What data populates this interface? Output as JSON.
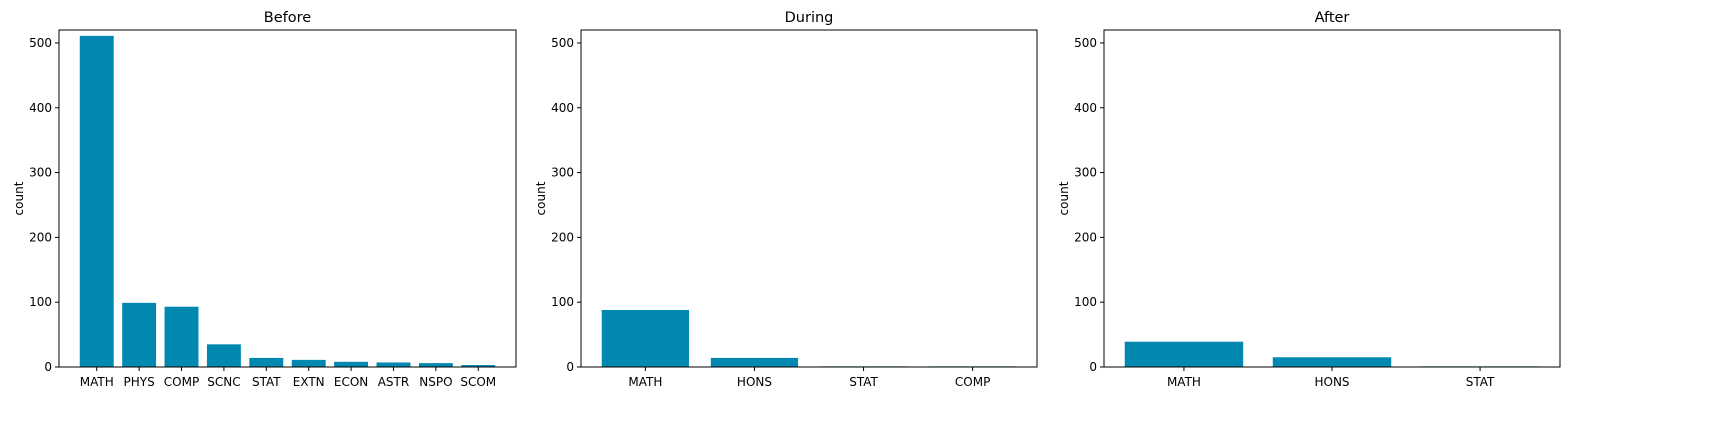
{
  "bar_color": "#0088b0",
  "chart_data": [
    {
      "type": "bar",
      "title": "Before",
      "xlabel": "",
      "ylabel": "count",
      "ylim": [
        0,
        520
      ],
      "yticks": [
        0,
        100,
        200,
        300,
        400,
        500
      ],
      "categories": [
        "MATH",
        "PHYS",
        "COMP",
        "SCNC",
        "STAT",
        "EXTN",
        "ECON",
        "ASTR",
        "NSPO",
        "SCOM"
      ],
      "values": [
        511,
        99,
        93,
        35,
        14,
        11,
        8,
        7,
        6,
        3
      ]
    },
    {
      "type": "bar",
      "title": "During",
      "xlabel": "",
      "ylabel": "count",
      "ylim": [
        0,
        520
      ],
      "yticks": [
        0,
        100,
        200,
        300,
        400,
        500
      ],
      "categories": [
        "MATH",
        "HONS",
        "STAT",
        "COMP"
      ],
      "values": [
        88,
        14,
        1,
        1
      ]
    },
    {
      "type": "bar",
      "title": "After",
      "xlabel": "",
      "ylabel": "count",
      "ylim": [
        0,
        520
      ],
      "yticks": [
        0,
        100,
        200,
        300,
        400,
        500
      ],
      "categories": [
        "MATH",
        "HONS",
        "STAT"
      ],
      "values": [
        39,
        15,
        1
      ]
    }
  ]
}
